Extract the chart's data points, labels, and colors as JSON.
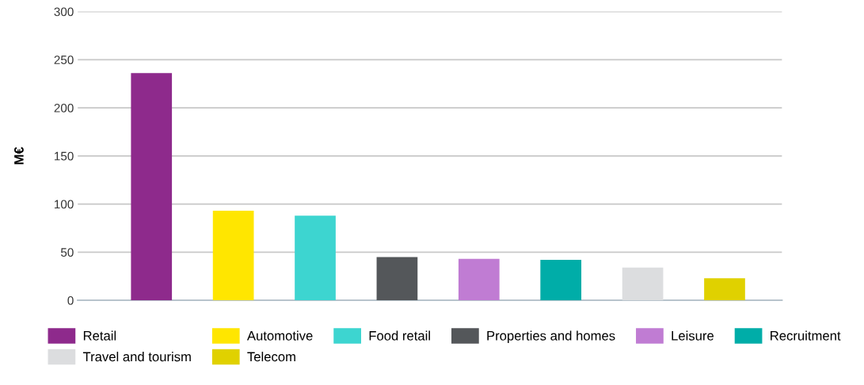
{
  "chart_data": {
    "type": "bar",
    "ylabel": "M€",
    "categories": [
      null,
      null,
      null,
      null,
      null,
      null,
      null,
      null
    ],
    "series": [
      {
        "name": "Retail",
        "color": "#8e2a8c",
        "values": [
          236,
          null,
          null,
          null,
          null,
          null,
          null,
          null
        ]
      },
      {
        "name": "Automotive",
        "color": "#ffe600",
        "values": [
          null,
          93,
          null,
          null,
          null,
          null,
          null,
          null
        ]
      },
      {
        "name": "Food retail",
        "color": "#3dd5d0",
        "values": [
          null,
          null,
          88,
          null,
          null,
          null,
          null,
          null
        ]
      },
      {
        "name": "Properties and homes",
        "color": "#54575a",
        "values": [
          null,
          null,
          null,
          45,
          null,
          null,
          null,
          null
        ]
      },
      {
        "name": "Leisure",
        "color": "#c07cd3",
        "values": [
          null,
          null,
          null,
          null,
          43,
          null,
          null,
          null
        ]
      },
      {
        "name": "Recruitment",
        "color": "#00ada8",
        "values": [
          null,
          null,
          null,
          null,
          null,
          42,
          null,
          null
        ]
      },
      {
        "name": "Travel and tourism",
        "color": "#dcdddf",
        "values": [
          null,
          null,
          null,
          null,
          null,
          null,
          34,
          null
        ]
      },
      {
        "name": "Telecom",
        "color": "#e0d100",
        "values": [
          null,
          null,
          null,
          null,
          null,
          null,
          null,
          23
        ]
      }
    ],
    "ylim": [
      0,
      300
    ],
    "yticks": [
      0,
      50,
      100,
      150,
      200,
      250,
      300
    ],
    "grid": "y",
    "legend": "bottom"
  }
}
